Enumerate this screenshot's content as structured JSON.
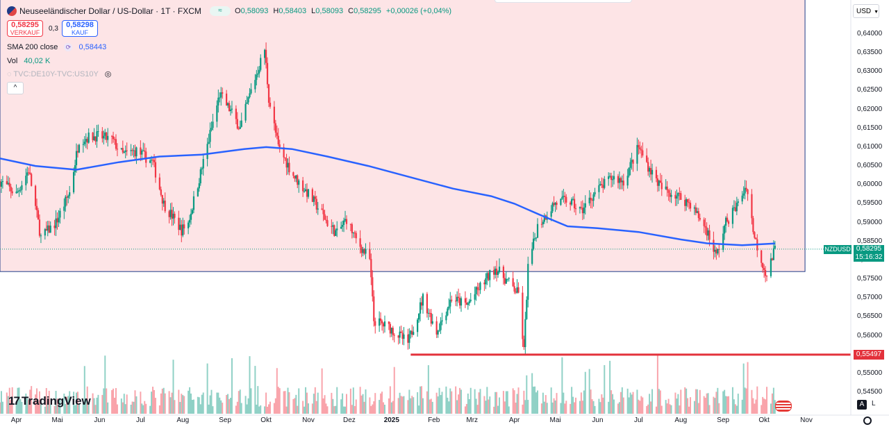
{
  "header": {
    "title": "Neuseeländischer Dollar / US-Dollar · 1T · FXCM",
    "market_status": "≈",
    "ohlc": [
      {
        "key": "O",
        "value": "0,58093"
      },
      {
        "key": "H",
        "value": "0,58403"
      },
      {
        "key": "L",
        "value": "0,58093"
      },
      {
        "key": "C",
        "value": "0,58295"
      },
      {
        "key": "",
        "value": "+0,00026 (+0,04%)"
      }
    ]
  },
  "trade": {
    "sell_price": "0,58295",
    "sell_label": "VERKAUF",
    "spread": "0,3",
    "buy_price": "0,58298",
    "buy_label": "KAUF"
  },
  "indicators": {
    "sma_label": "SMA 200 close",
    "sma_value": "0,58443",
    "vol_label": "Vol",
    "vol_value": "40,02 K",
    "tvc_label": "TVC:DE10Y-TVC:US10Y"
  },
  "collapse_label": "^",
  "brand": "TradingView",
  "currency": "USD",
  "symbol_tag": "NZDUSD",
  "last_price": "0,58295",
  "countdown": "15:16:32",
  "support_label": "0,55497",
  "scale_buttons": {
    "auto": "A",
    "log": "L"
  },
  "colors": {
    "up": "#089981",
    "down": "#f23645",
    "sma": "#2962ff",
    "zone": "#fde4e6",
    "support": "#e3313b"
  },
  "chart_data": {
    "type": "candlestick",
    "title": "Neuseeländischer Dollar / US-Dollar · 1T · FXCM",
    "y_ticks": [
      "0,64000",
      "0,63500",
      "0,63000",
      "0,62500",
      "0,62000",
      "0,61500",
      "0,61000",
      "0,60500",
      "0,60000",
      "0,59500",
      "0,59000",
      "0,58500",
      "0,58000",
      "0,57500",
      "0,57000",
      "0,56500",
      "0,56000",
      "0,55500",
      "0,55000",
      "0,54500"
    ],
    "ylim": [
      0.5425,
      0.6425
    ],
    "x_ticks": [
      {
        "label": "Apr",
        "date": "2024-04-01"
      },
      {
        "label": "Mai",
        "date": "2024-05-01"
      },
      {
        "label": "Jun",
        "date": "2024-06-01"
      },
      {
        "label": "Jul",
        "date": "2024-07-01"
      },
      {
        "label": "Aug",
        "date": "2024-08-01"
      },
      {
        "label": "Sep",
        "date": "2024-09-01"
      },
      {
        "label": "Okt",
        "date": "2024-10-01"
      },
      {
        "label": "Nov",
        "date": "2024-11-01"
      },
      {
        "label": "Dez",
        "date": "2024-12-01"
      },
      {
        "label": "2025",
        "date": "2025-01-01",
        "bold": true
      },
      {
        "label": "Feb",
        "date": "2025-02-01"
      },
      {
        "label": "Mrz",
        "date": "2025-03-01"
      },
      {
        "label": "Apr",
        "date": "2025-04-01"
      },
      {
        "label": "Mai",
        "date": "2025-05-01"
      },
      {
        "label": "Jun",
        "date": "2025-06-01"
      },
      {
        "label": "Jul",
        "date": "2025-07-01"
      },
      {
        "label": "Aug",
        "date": "2025-08-01"
      },
      {
        "label": "Sep",
        "date": "2025-09-01"
      },
      {
        "label": "Okt",
        "date": "2025-10-01"
      },
      {
        "label": "Nov",
        "date": "2025-11-01"
      }
    ],
    "close_path": [
      [
        "2024-03-20",
        0.601
      ],
      [
        "2024-04-01",
        0.5975
      ],
      [
        "2024-04-10",
        0.604
      ],
      [
        "2024-04-19",
        0.586
      ],
      [
        "2024-04-30",
        0.59
      ],
      [
        "2024-05-10",
        0.598
      ],
      [
        "2024-05-17",
        0.612
      ],
      [
        "2024-05-29",
        0.613
      ],
      [
        "2024-06-10",
        0.612
      ],
      [
        "2024-06-18",
        0.608
      ],
      [
        "2024-06-28",
        0.609
      ],
      [
        "2024-07-10",
        0.606
      ],
      [
        "2024-07-18",
        0.595
      ],
      [
        "2024-07-31",
        0.588
      ],
      [
        "2024-08-05",
        0.59
      ],
      [
        "2024-08-16",
        0.606
      ],
      [
        "2024-08-28",
        0.624
      ],
      [
        "2024-09-06",
        0.619
      ],
      [
        "2024-09-12",
        0.615
      ],
      [
        "2024-09-20",
        0.625
      ],
      [
        "2024-09-30",
        0.636
      ],
      [
        "2024-10-03",
        0.623
      ],
      [
        "2024-10-10",
        0.61
      ],
      [
        "2024-10-22",
        0.602
      ],
      [
        "2024-10-31",
        0.598
      ],
      [
        "2024-11-08",
        0.594
      ],
      [
        "2024-11-15",
        0.59
      ],
      [
        "2024-11-22",
        0.587
      ],
      [
        "2024-11-29",
        0.591
      ],
      [
        "2024-12-05",
        0.586
      ],
      [
        "2024-12-16",
        0.58
      ],
      [
        "2024-12-19",
        0.564
      ],
      [
        "2024-12-31",
        0.562
      ],
      [
        "2025-01-13",
        0.558
      ],
      [
        "2025-01-24",
        0.57
      ],
      [
        "2025-02-03",
        0.561
      ],
      [
        "2025-02-14",
        0.57
      ],
      [
        "2025-02-25",
        0.568
      ],
      [
        "2025-03-05",
        0.572
      ],
      [
        "2025-03-18",
        0.578
      ],
      [
        "2025-03-28",
        0.574
      ],
      [
        "2025-04-04",
        0.571
      ],
      [
        "2025-04-08",
        0.556
      ],
      [
        "2025-04-11",
        0.578
      ],
      [
        "2025-04-18",
        0.589
      ],
      [
        "2025-04-30",
        0.595
      ],
      [
        "2025-05-10",
        0.596
      ],
      [
        "2025-05-20",
        0.593
      ],
      [
        "2025-05-30",
        0.598
      ],
      [
        "2025-06-12",
        0.602
      ],
      [
        "2025-06-20",
        0.601
      ],
      [
        "2025-07-01",
        0.61
      ],
      [
        "2025-07-08",
        0.605
      ],
      [
        "2025-07-18",
        0.599
      ],
      [
        "2025-07-30",
        0.597
      ],
      [
        "2025-08-08",
        0.595
      ],
      [
        "2025-08-20",
        0.588
      ],
      [
        "2025-08-27",
        0.581
      ],
      [
        "2025-09-03",
        0.59
      ],
      [
        "2025-09-12",
        0.595
      ],
      [
        "2025-09-18",
        0.6
      ],
      [
        "2025-09-24",
        0.586
      ],
      [
        "2025-09-30",
        0.579
      ],
      [
        "2025-10-03",
        0.576
      ],
      [
        "2025-10-09",
        0.583
      ]
    ],
    "sma_200": [
      [
        "2024-03-20",
        0.607
      ],
      [
        "2024-04-15",
        0.605
      ],
      [
        "2024-05-15",
        0.604
      ],
      [
        "2024-06-15",
        0.606
      ],
      [
        "2024-07-15",
        0.6075
      ],
      [
        "2024-08-15",
        0.608
      ],
      [
        "2024-09-15",
        0.6095
      ],
      [
        "2024-10-01",
        0.61
      ],
      [
        "2024-10-20",
        0.6095
      ],
      [
        "2024-11-15",
        0.6075
      ],
      [
        "2024-12-15",
        0.605
      ],
      [
        "2025-01-15",
        0.602
      ],
      [
        "2025-02-15",
        0.599
      ],
      [
        "2025-03-15",
        0.597
      ],
      [
        "2025-04-01",
        0.595
      ],
      [
        "2025-04-20",
        0.592
      ],
      [
        "2025-05-10",
        0.589
      ],
      [
        "2025-06-01",
        0.5885
      ],
      [
        "2025-07-01",
        0.5875
      ],
      [
        "2025-08-01",
        0.5855
      ],
      [
        "2025-08-20",
        0.5845
      ],
      [
        "2025-09-15",
        0.584
      ],
      [
        "2025-10-09",
        0.58443
      ]
    ],
    "zone": {
      "from": 0.577,
      "to": 0.6425,
      "start": "2024-03-20",
      "end": "2025-10-31"
    },
    "support_level": 0.55497,
    "support_start": "2025-01-15",
    "last_price": 0.58295
  }
}
